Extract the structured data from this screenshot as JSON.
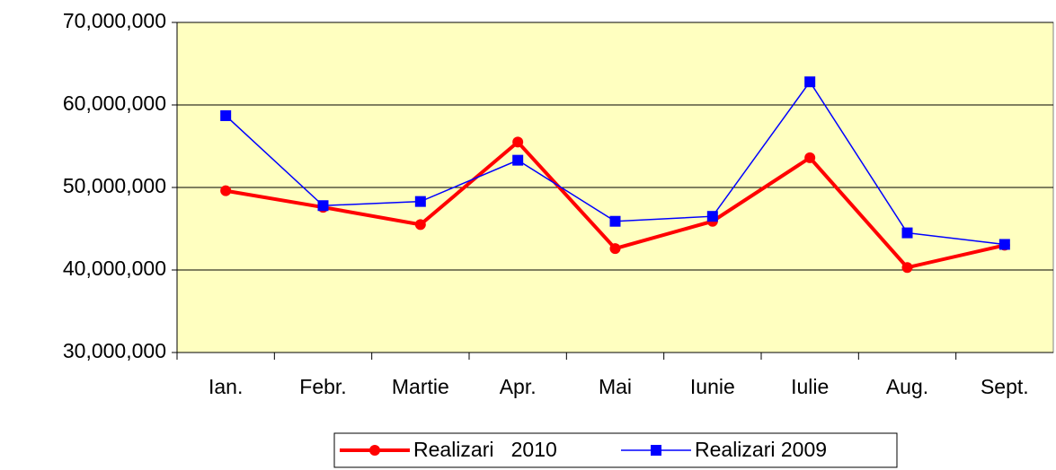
{
  "chart_data": {
    "type": "line",
    "categories": [
      "Ian.",
      "Febr.",
      "Martie",
      "Apr.",
      "Mai",
      "Iunie",
      "Iulie",
      "Aug.",
      "Sept."
    ],
    "series": [
      {
        "name": "Realizari   2010",
        "color": "#ff0000",
        "marker": "circle",
        "values": [
          49600000,
          47600000,
          45500000,
          55500000,
          42600000,
          45900000,
          53600000,
          40300000,
          43000000
        ]
      },
      {
        "name": "Realizari 2009",
        "color": "#0000ff",
        "marker": "square",
        "values": [
          58700000,
          47800000,
          48300000,
          53300000,
          45900000,
          46500000,
          62800000,
          44500000,
          43100000
        ]
      }
    ],
    "ylim": [
      30000000,
      70000000
    ],
    "yticks": [
      {
        "value": 30000000,
        "label": "30,000,000"
      },
      {
        "value": 40000000,
        "label": "40,000,000"
      },
      {
        "value": 50000000,
        "label": "50,000,000"
      },
      {
        "value": 60000000,
        "label": "60,000,000"
      },
      {
        "value": 70000000,
        "label": "70,000,000"
      }
    ],
    "grid": true,
    "legend": "bottom",
    "background": "#ffffc0"
  }
}
